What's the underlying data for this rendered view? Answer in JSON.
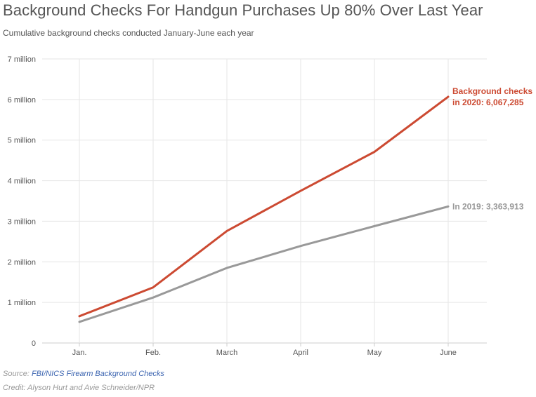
{
  "header": {
    "title": "Background Checks For Handgun Purchases Up 80% Over Last Year",
    "subtitle": "Cumulative background checks conducted January-June each year"
  },
  "footer": {
    "source_prefix": "Source:",
    "source_link": "FBI/NICS Firearm Background Checks",
    "credit": "Credit: Alyson Hurt and Avie Schneider/NPR"
  },
  "colors": {
    "series_2020": "#cc4a32",
    "series_2019": "#999999",
    "grid": "#e6e6e6",
    "axis_text": "#555555"
  },
  "chart_data": {
    "type": "line",
    "title": "Background Checks For Handgun Purchases Up 80% Over Last Year",
    "subtitle": "Cumulative background checks conducted January-June each year",
    "categories": [
      "Jan.",
      "Feb.",
      "March",
      "April",
      "May",
      "June"
    ],
    "ylim": [
      0,
      7000000
    ],
    "yticks": [
      {
        "value": 0,
        "label": "0"
      },
      {
        "value": 1000000,
        "label": "1 million"
      },
      {
        "value": 2000000,
        "label": "2 million"
      },
      {
        "value": 3000000,
        "label": "3 million"
      },
      {
        "value": 4000000,
        "label": "4 million"
      },
      {
        "value": 5000000,
        "label": "5 million"
      },
      {
        "value": 6000000,
        "label": "6 million"
      },
      {
        "value": 7000000,
        "label": "7 million"
      }
    ],
    "grid": true,
    "series": [
      {
        "key": "y2020",
        "values": [
          660000,
          1370000,
          2760000,
          3750000,
          4710000,
          6067285
        ],
        "color": "#cc4a32",
        "annotation": [
          "Background checks",
          "in 2020: 6,067,285"
        ]
      },
      {
        "key": "y2019",
        "values": [
          520000,
          1120000,
          1850000,
          2390000,
          2880000,
          3363913
        ],
        "color": "#999999",
        "annotation": [
          "In 2019: 3,363,913"
        ]
      }
    ]
  }
}
